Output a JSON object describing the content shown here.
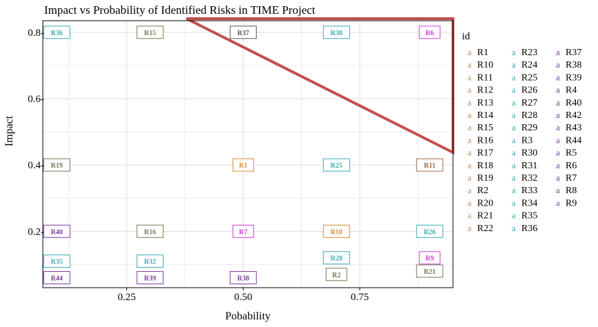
{
  "chart_data": {
    "type": "scatter",
    "title": "Impact vs Probability of Identified Risks in TIME Project",
    "xlabel": "Pobability",
    "ylabel": "Impact",
    "xlim": [
      0.07,
      0.95
    ],
    "ylim": [
      0.03,
      0.835
    ],
    "x_ticks": [
      0.25,
      0.5,
      0.75
    ],
    "x_tick_labels": [
      "0.25",
      "0.50",
      "0.75"
    ],
    "y_ticks": [
      0.2,
      0.4,
      0.6,
      0.8
    ],
    "y_tick_labels": [
      "0.2-",
      "0.4-",
      "0.6-",
      "0.8-"
    ],
    "grid": true,
    "legend_title": "id",
    "legend_placement": "right",
    "legend_key_glyph": "a",
    "colors": {
      "group1": "#c08a55",
      "group2": "#3aaab3",
      "group3": "#7a3a98",
      "annotation": "#c0504d",
      "grid": "#e6e6e6"
    },
    "points": [
      {
        "id": "R36",
        "x": 0.1,
        "y": 0.8,
        "color": "#3aaab3"
      },
      {
        "id": "R15",
        "x": 0.3,
        "y": 0.8,
        "color": "#6e7a52"
      },
      {
        "id": "R37",
        "x": 0.5,
        "y": 0.8,
        "color": "#555555"
      },
      {
        "id": "R30",
        "x": 0.7,
        "y": 0.8,
        "color": "#3aaab3"
      },
      {
        "id": "R6",
        "x": 0.9,
        "y": 0.8,
        "color": "#d63bd6"
      },
      {
        "id": "R19",
        "x": 0.1,
        "y": 0.4,
        "color": "#6e7a52"
      },
      {
        "id": "R1",
        "x": 0.5,
        "y": 0.4,
        "color": "#d9883b"
      },
      {
        "id": "R25",
        "x": 0.7,
        "y": 0.4,
        "color": "#3aaab3"
      },
      {
        "id": "R11",
        "x": 0.9,
        "y": 0.4,
        "color": "#a0683f"
      },
      {
        "id": "R40",
        "x": 0.1,
        "y": 0.2,
        "color": "#7a3a98"
      },
      {
        "id": "R16",
        "x": 0.3,
        "y": 0.2,
        "color": "#6e7a52"
      },
      {
        "id": "R7",
        "x": 0.5,
        "y": 0.2,
        "color": "#d63bd6"
      },
      {
        "id": "R10",
        "x": 0.7,
        "y": 0.2,
        "color": "#d9883b"
      },
      {
        "id": "R26",
        "x": 0.9,
        "y": 0.2,
        "color": "#3aaab3"
      },
      {
        "id": "R35",
        "x": 0.1,
        "y": 0.11,
        "color": "#3aaab3"
      },
      {
        "id": "R32",
        "x": 0.3,
        "y": 0.11,
        "color": "#3aaab3"
      },
      {
        "id": "R28",
        "x": 0.7,
        "y": 0.12,
        "color": "#3aaab3"
      },
      {
        "id": "R9",
        "x": 0.9,
        "y": 0.12,
        "color": "#d63bd6"
      },
      {
        "id": "R44",
        "x": 0.1,
        "y": 0.06,
        "color": "#7a3a98"
      },
      {
        "id": "R39",
        "x": 0.3,
        "y": 0.06,
        "color": "#7a3a98"
      },
      {
        "id": "R38",
        "x": 0.5,
        "y": 0.06,
        "color": "#7a3a98"
      },
      {
        "id": "R2",
        "x": 0.7,
        "y": 0.07,
        "color": "#6e7a52"
      },
      {
        "id": "R21",
        "x": 0.9,
        "y": 0.08,
        "color": "#6e7a52"
      }
    ],
    "legend": [
      {
        "id": "R1",
        "color": "#c08a55"
      },
      {
        "id": "R10",
        "color": "#c08a55"
      },
      {
        "id": "R11",
        "color": "#c08a55"
      },
      {
        "id": "R12",
        "color": "#c08a55"
      },
      {
        "id": "R13",
        "color": "#c08a55"
      },
      {
        "id": "R14",
        "color": "#c08a55"
      },
      {
        "id": "R15",
        "color": "#c08a55"
      },
      {
        "id": "R16",
        "color": "#c08a55"
      },
      {
        "id": "R17",
        "color": "#c08a55"
      },
      {
        "id": "R18",
        "color": "#c08a55"
      },
      {
        "id": "R19",
        "color": "#c08a55"
      },
      {
        "id": "R2",
        "color": "#c08a55"
      },
      {
        "id": "R20",
        "color": "#c08a55"
      },
      {
        "id": "R21",
        "color": "#c08a55"
      },
      {
        "id": "R22",
        "color": "#c08a55"
      },
      {
        "id": "R23",
        "color": "#3aaab3"
      },
      {
        "id": "R24",
        "color": "#3aaab3"
      },
      {
        "id": "R25",
        "color": "#3aaab3"
      },
      {
        "id": "R26",
        "color": "#3aaab3"
      },
      {
        "id": "R27",
        "color": "#3aaab3"
      },
      {
        "id": "R28",
        "color": "#3aaab3"
      },
      {
        "id": "R29",
        "color": "#3aaab3"
      },
      {
        "id": "R3",
        "color": "#3aaab3"
      },
      {
        "id": "R30",
        "color": "#3aaab3"
      },
      {
        "id": "R31",
        "color": "#3aaab3"
      },
      {
        "id": "R32",
        "color": "#3aaab3"
      },
      {
        "id": "R33",
        "color": "#3aaab3"
      },
      {
        "id": "R34",
        "color": "#3aaab3"
      },
      {
        "id": "R35",
        "color": "#3aaab3"
      },
      {
        "id": "R36",
        "color": "#3aaab3"
      },
      {
        "id": "R37",
        "color": "#7a3a98"
      },
      {
        "id": "R38",
        "color": "#7a3a98"
      },
      {
        "id": "R39",
        "color": "#7a3a98"
      },
      {
        "id": "R4",
        "color": "#7a3a98"
      },
      {
        "id": "R40",
        "color": "#7a3a98"
      },
      {
        "id": "R42",
        "color": "#7a3a98"
      },
      {
        "id": "R43",
        "color": "#7a3a98"
      },
      {
        "id": "R44",
        "color": "#7a3a98"
      },
      {
        "id": "R5",
        "color": "#7a3a98"
      },
      {
        "id": "R6",
        "color": "#7a3a98"
      },
      {
        "id": "R7",
        "color": "#7a3a98"
      },
      {
        "id": "R8",
        "color": "#7a3a98"
      },
      {
        "id": "R9",
        "color": "#7a3a98"
      }
    ]
  }
}
